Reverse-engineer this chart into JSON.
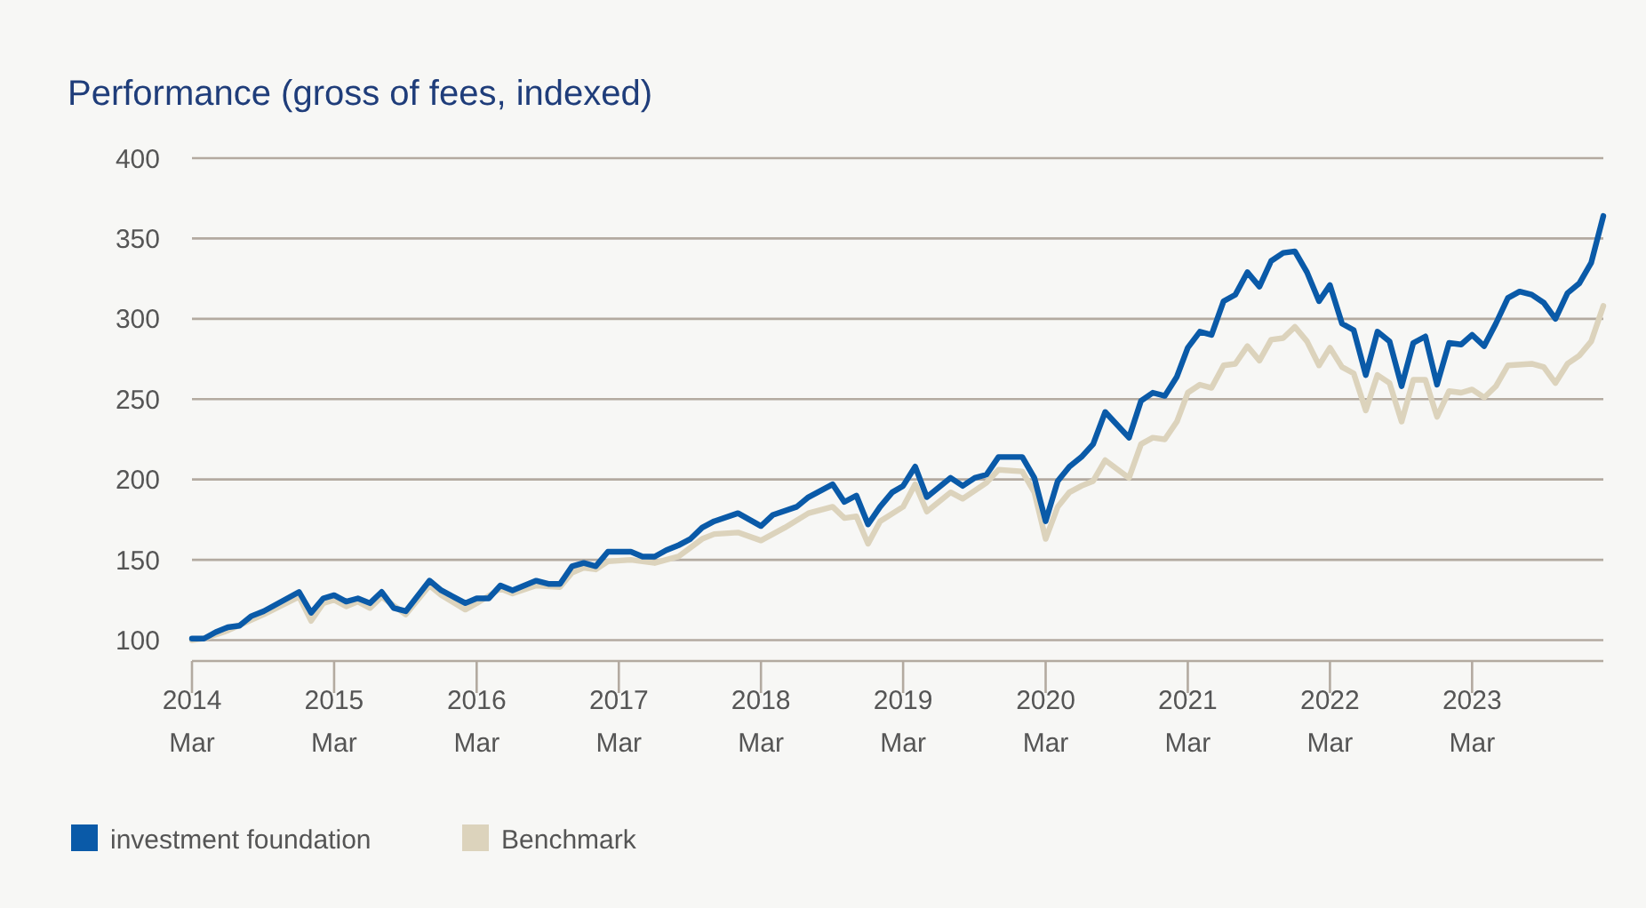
{
  "chart_data": {
    "type": "line",
    "title": "Performance (gross of fees, indexed)",
    "xlim": [
      "2014-03",
      "2024-02"
    ],
    "ylim": [
      87,
      400
    ],
    "xticks": [
      {
        "value": "2014-03",
        "label": "2014 Mar"
      },
      {
        "value": "2015-03",
        "label": "2015 Mar"
      },
      {
        "value": "2016-03",
        "label": "2016 Mar"
      },
      {
        "value": "2017-03",
        "label": "2017 Mar"
      },
      {
        "value": "2018-03",
        "label": "2018 Mar"
      },
      {
        "value": "2019-03",
        "label": "2019 Mar"
      },
      {
        "value": "2020-03",
        "label": "2020 Mar"
      },
      {
        "value": "2021-03",
        "label": "2021 Mar"
      },
      {
        "value": "2022-03",
        "label": "2022 Mar"
      },
      {
        "value": "2023-03",
        "label": "2023 Mar"
      }
    ],
    "yticks": [
      100,
      150,
      200,
      250,
      300,
      350,
      400
    ],
    "grid": "y",
    "legend": "bottom left",
    "marker": "none",
    "line_style": "solid",
    "series": [
      {
        "name": "Benchmark",
        "color": "#dcd3bc",
        "x": [
          "2014-03",
          "2014-04",
          "2014-06",
          "2014-09",
          "2014-12",
          "2015-01",
          "2015-02",
          "2015-03",
          "2015-04",
          "2015-05",
          "2015-06",
          "2015-07",
          "2015-09",
          "2015-11",
          "2015-12",
          "2016-02",
          "2016-03",
          "2016-05",
          "2016-06",
          "2016-08",
          "2016-10",
          "2016-11",
          "2016-12",
          "2017-01",
          "2017-02",
          "2017-04",
          "2017-06",
          "2017-08",
          "2017-10",
          "2017-11",
          "2018-01",
          "2018-03",
          "2018-05",
          "2018-07",
          "2018-09",
          "2018-10",
          "2018-11",
          "2018-12",
          "2019-01",
          "2019-03",
          "2019-04",
          "2019-05",
          "2019-07",
          "2019-08",
          "2019-10",
          "2019-11",
          "2020-01",
          "2020-02",
          "2020-03",
          "2020-04",
          "2020-05",
          "2020-06",
          "2020-07",
          "2020-08",
          "2020-10",
          "2020-11",
          "2020-12",
          "2021-01",
          "2021-02",
          "2021-03",
          "2021-04",
          "2021-05",
          "2021-06",
          "2021-07",
          "2021-08",
          "2021-09",
          "2021-10",
          "2021-11",
          "2021-12",
          "2022-01",
          "2022-02",
          "2022-03",
          "2022-04",
          "2022-05",
          "2022-06",
          "2022-07",
          "2022-08",
          "2022-09",
          "2022-10",
          "2022-11",
          "2022-12",
          "2023-01",
          "2023-02",
          "2023-03",
          "2023-04",
          "2023-05",
          "2023-06",
          "2023-08",
          "2023-09",
          "2023-10",
          "2023-11",
          "2023-12",
          "2024-01",
          "2024-02"
        ],
        "values": [
          100,
          101,
          106,
          116,
          127,
          112,
          123,
          125,
          121,
          124,
          120,
          127,
          116,
          134,
          128,
          119,
          123,
          132,
          129,
          134,
          133,
          142,
          145,
          144,
          149,
          150,
          148,
          152,
          163,
          166,
          167,
          162,
          170,
          179,
          183,
          176,
          177,
          160,
          174,
          183,
          197,
          180,
          192,
          188,
          198,
          206,
          205,
          192,
          163,
          183,
          192,
          196,
          199,
          212,
          201,
          222,
          226,
          225,
          236,
          254,
          259,
          257,
          271,
          272,
          283,
          274,
          287,
          288,
          295,
          286,
          271,
          282,
          270,
          266,
          243,
          265,
          260,
          236,
          262,
          262,
          239,
          255,
          254,
          256,
          251,
          258,
          271,
          272,
          270,
          260,
          272,
          277,
          286,
          308
        ]
      },
      {
        "name": "investment foundation",
        "color": "#0a5aa8",
        "x": [
          "2014-03",
          "2014-04",
          "2014-05",
          "2014-06",
          "2014-07",
          "2014-08",
          "2014-09",
          "2014-12",
          "2015-01",
          "2015-02",
          "2015-03",
          "2015-04",
          "2015-05",
          "2015-06",
          "2015-07",
          "2015-08",
          "2015-09",
          "2015-11",
          "2015-12",
          "2016-02",
          "2016-03",
          "2016-04",
          "2016-05",
          "2016-06",
          "2016-08",
          "2016-09",
          "2016-10",
          "2016-11",
          "2016-12",
          "2017-01",
          "2017-02",
          "2017-04",
          "2017-05",
          "2017-06",
          "2017-07",
          "2017-08",
          "2017-09",
          "2017-10",
          "2017-11",
          "2018-01",
          "2018-03",
          "2018-04",
          "2018-06",
          "2018-07",
          "2018-09",
          "2018-10",
          "2018-11",
          "2018-12",
          "2019-01",
          "2019-02",
          "2019-03",
          "2019-04",
          "2019-05",
          "2019-07",
          "2019-08",
          "2019-09",
          "2019-10",
          "2019-11",
          "2020-01",
          "2020-02",
          "2020-03",
          "2020-04",
          "2020-05",
          "2020-06",
          "2020-07",
          "2020-08",
          "2020-10",
          "2020-11",
          "2020-12",
          "2021-01",
          "2021-02",
          "2021-03",
          "2021-04",
          "2021-05",
          "2021-06",
          "2021-07",
          "2021-08",
          "2021-09",
          "2021-10",
          "2021-11",
          "2021-12",
          "2022-01",
          "2022-02",
          "2022-03",
          "2022-04",
          "2022-05",
          "2022-06",
          "2022-07",
          "2022-08",
          "2022-09",
          "2022-10",
          "2022-11",
          "2022-12",
          "2023-01",
          "2023-02",
          "2023-03",
          "2023-04",
          "2023-05",
          "2023-06",
          "2023-07",
          "2023-08",
          "2023-09",
          "2023-10",
          "2023-11",
          "2023-12",
          "2024-01",
          "2024-02"
        ],
        "values": [
          101,
          101,
          105,
          108,
          109,
          115,
          118,
          130,
          117,
          126,
          128,
          124,
          126,
          123,
          130,
          120,
          118,
          137,
          131,
          123,
          126,
          126,
          134,
          131,
          137,
          135,
          135,
          146,
          148,
          146,
          155,
          155,
          152,
          152,
          156,
          159,
          163,
          170,
          174,
          179,
          171,
          178,
          183,
          189,
          197,
          186,
          190,
          172,
          183,
          192,
          196,
          208,
          189,
          201,
          196,
          201,
          203,
          214,
          214,
          201,
          174,
          199,
          208,
          214,
          222,
          242,
          226,
          249,
          254,
          252,
          264,
          282,
          292,
          290,
          311,
          315,
          329,
          320,
          336,
          341,
          342,
          329,
          311,
          321,
          297,
          293,
          265,
          292,
          286,
          258,
          285,
          289,
          259,
          285,
          284,
          290,
          283,
          297,
          313,
          317,
          315,
          310,
          300,
          316,
          322,
          335,
          364
        ]
      }
    ]
  }
}
